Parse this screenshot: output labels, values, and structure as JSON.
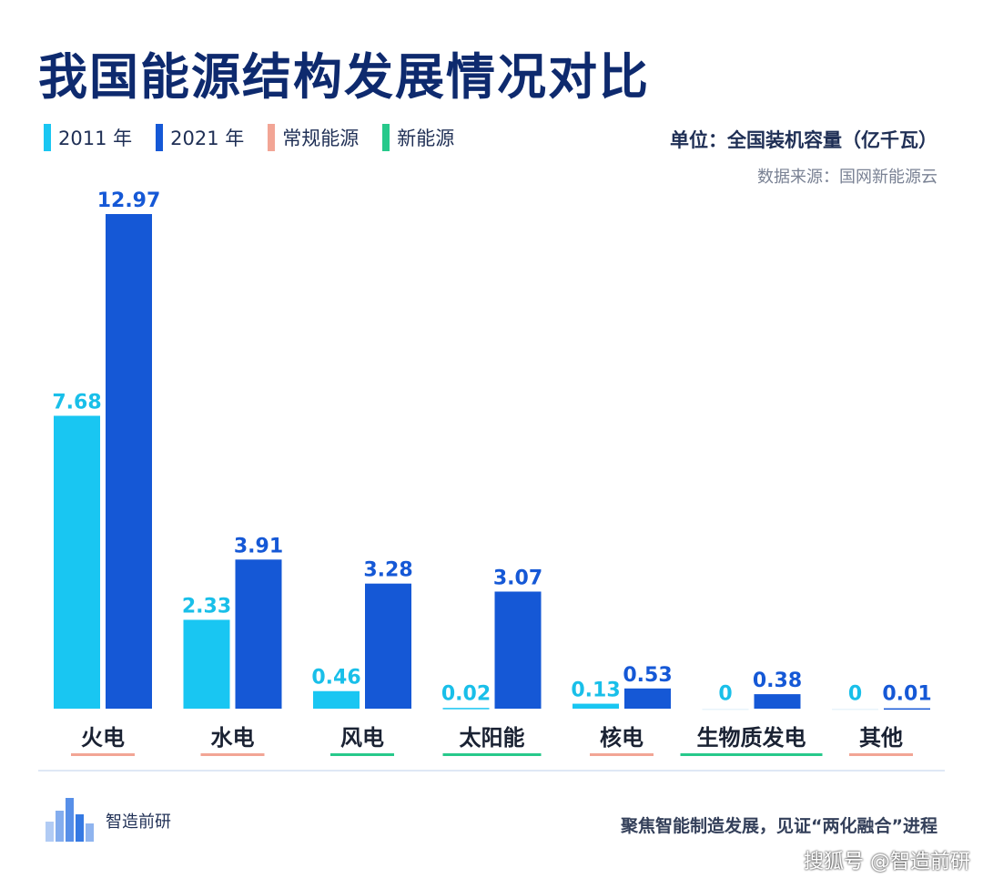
{
  "title": "我国能源结构发展情况对比",
  "legend": [
    {
      "label": "2011 年",
      "color": "#19c6f2"
    },
    {
      "label": "2021 年",
      "color": "#1558d6"
    },
    {
      "label": "常规能源",
      "color": "#f2a595"
    },
    {
      "label": "新能源",
      "color": "#27c98b"
    }
  ],
  "unit": "单位：全国装机容量（亿千瓦）",
  "source": "数据来源：国网新能源云",
  "slogan": "聚焦智能制造发展，见证“两化融合”进程",
  "logo_text": "智造前研",
  "watermark": "搜狐号 @智造前研",
  "chart_data": {
    "type": "bar",
    "categories": [
      "火电",
      "水电",
      "风电",
      "太阳能",
      "核电",
      "生物质发电",
      "其他"
    ],
    "category_groups": [
      "常规能源",
      "常规能源",
      "新能源",
      "新能源",
      "常规能源",
      "新能源",
      "常规能源"
    ],
    "series": [
      {
        "name": "2011 年",
        "color": "#19c6f2",
        "values": [
          7.68,
          2.33,
          0.46,
          0.02,
          0.13,
          0,
          0
        ],
        "labels": [
          "7.68",
          "2.33",
          "0.46",
          "0.02",
          "0.13",
          "0",
          "0"
        ]
      },
      {
        "name": "2021 年",
        "color": "#1558d6",
        "values": [
          12.97,
          3.91,
          3.28,
          3.07,
          0.53,
          0.38,
          0.01
        ],
        "labels": [
          "12.97",
          "3.91",
          "3.28",
          "3.07",
          "0.53",
          "0.38",
          "0.01"
        ]
      }
    ],
    "ylim": [
      0,
      12.97
    ],
    "grid": false,
    "legend_position": "top-left"
  }
}
